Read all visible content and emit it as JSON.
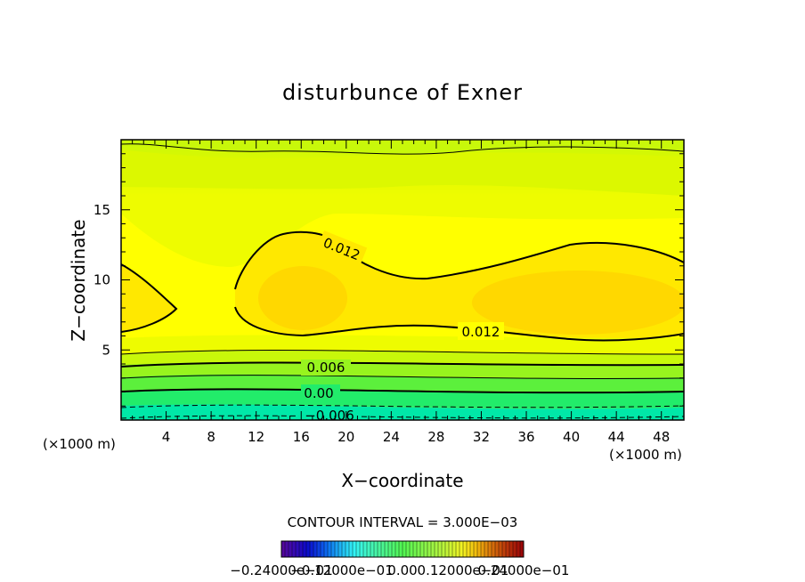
{
  "chart_data": {
    "type": "contour",
    "title": "disturbunce of Exner",
    "xlabel": "X−coordinate",
    "ylabel": "Z−coordinate",
    "x_unit_left": "(×1000 m)",
    "x_unit_right": "(×1000 m)",
    "xlim": [
      0,
      50
    ],
    "ylim": [
      0,
      20
    ],
    "x_ticks": [
      4,
      8,
      12,
      16,
      20,
      24,
      28,
      32,
      36,
      40,
      44,
      48
    ],
    "x_tick_labels": [
      "4",
      "8",
      "12",
      "16",
      "20",
      "24",
      "28",
      "32",
      "36",
      "40",
      "44",
      "48"
    ],
    "y_ticks": [
      5,
      10,
      15
    ],
    "y_tick_labels": [
      "5",
      "10",
      "15"
    ],
    "contour_interval_text": "CONTOUR INTERVAL = 3.000E−03",
    "contour_labels": [
      "0.012",
      "0.012",
      "0.006",
      "0.00",
      "−0.006"
    ],
    "colorbar_labels": [
      "−0.24000e−01",
      "−0.12000e−01",
      "0.00",
      "0.12000e−01",
      "0.24000e−01"
    ],
    "colors": {
      "background": "#ffffff",
      "axis": "#000000",
      "bands": [
        "#00e8a8",
        "#22ec6a",
        "#5cf03c",
        "#98f41e",
        "#c8f80a",
        "#dcf800",
        "#eefc00",
        "#ffff00",
        "#ffe800",
        "#ffd800"
      ]
    }
  }
}
